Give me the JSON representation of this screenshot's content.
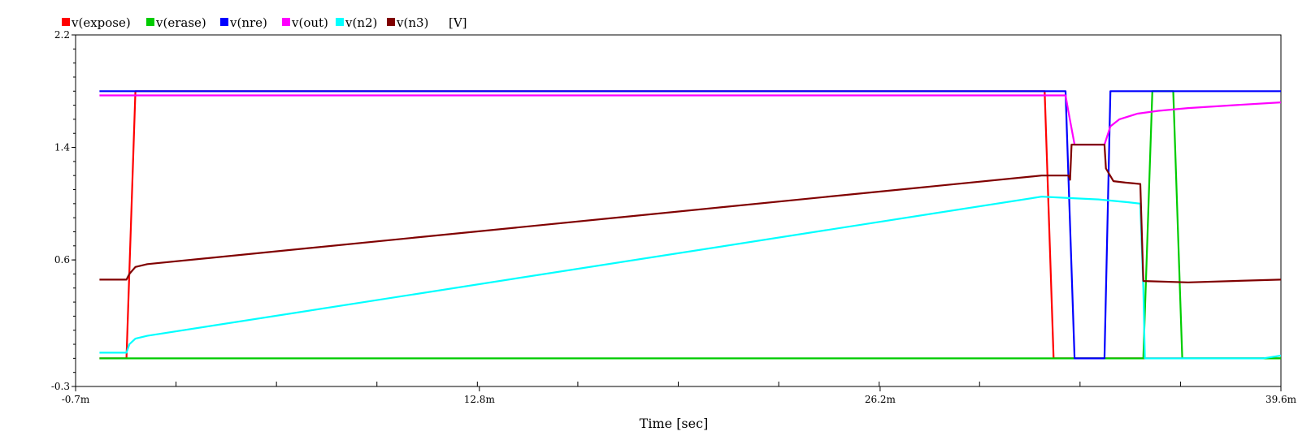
{
  "chart_data": {
    "type": "line",
    "xlabel": "Time [sec]",
    "yunit": "[V]",
    "xlim": [
      -0.7,
      39.6
    ],
    "ylim": [
      -0.3,
      2.2
    ],
    "x_ticks": [
      {
        "value": -0.7,
        "label": "-0.7m"
      },
      {
        "value": 12.8,
        "label": "12.8m"
      },
      {
        "value": 26.2,
        "label": "26.2m"
      },
      {
        "value": 39.6,
        "label": "39.6m"
      }
    ],
    "y_ticks": [
      {
        "value": 2.2,
        "label": "2.2"
      },
      {
        "value": 1.4,
        "label": "1.4"
      },
      {
        "value": 0.6,
        "label": "0.6"
      },
      {
        "value": -0.3,
        "label": "-0.3"
      }
    ],
    "legend_placement": "top-left",
    "series": [
      {
        "name": "v(expose)",
        "color": "#ff0000",
        "points": [
          [
            0.1,
            -0.1
          ],
          [
            1.0,
            -0.1
          ],
          [
            1.3,
            1.8
          ],
          [
            31.7,
            1.8
          ],
          [
            32.0,
            -0.1
          ],
          [
            39.6,
            -0.1
          ]
        ]
      },
      {
        "name": "v(erase)",
        "color": "#00cc00",
        "points": [
          [
            0.1,
            -0.1
          ],
          [
            35.0,
            -0.1
          ],
          [
            35.3,
            1.8
          ],
          [
            36.0,
            1.8
          ],
          [
            36.3,
            -0.1
          ],
          [
            39.6,
            -0.1
          ]
        ]
      },
      {
        "name": "v(nre)",
        "color": "#0000ff",
        "points": [
          [
            0.1,
            1.8
          ],
          [
            32.4,
            1.8
          ],
          [
            32.7,
            -0.1
          ],
          [
            33.7,
            -0.1
          ],
          [
            33.9,
            1.8
          ],
          [
            39.6,
            1.8
          ]
        ]
      },
      {
        "name": "v(out)",
        "color": "#ff00ff",
        "points": [
          [
            0.1,
            1.77
          ],
          [
            32.4,
            1.77
          ],
          [
            32.5,
            1.65
          ],
          [
            32.7,
            1.42
          ],
          [
            33.7,
            1.42
          ],
          [
            33.9,
            1.55
          ],
          [
            34.2,
            1.6
          ],
          [
            34.8,
            1.64
          ],
          [
            35.5,
            1.66
          ],
          [
            36.5,
            1.68
          ],
          [
            38.0,
            1.7
          ],
          [
            39.6,
            1.72
          ]
        ]
      },
      {
        "name": "v(n2)",
        "color": "#00ffff",
        "points": [
          [
            0.1,
            -0.06
          ],
          [
            1.0,
            -0.06
          ],
          [
            1.1,
            0.0
          ],
          [
            1.3,
            0.04
          ],
          [
            1.7,
            0.06
          ],
          [
            31.6,
            1.05
          ],
          [
            32.5,
            1.04
          ],
          [
            33.5,
            1.03
          ],
          [
            34.5,
            1.01
          ],
          [
            34.9,
            1.0
          ],
          [
            35.0,
            0.4
          ],
          [
            35.05,
            -0.1
          ],
          [
            39.0,
            -0.1
          ],
          [
            39.6,
            -0.08
          ]
        ]
      },
      {
        "name": "v(n3)",
        "color": "#800000",
        "points": [
          [
            0.1,
            0.46
          ],
          [
            1.0,
            0.46
          ],
          [
            1.1,
            0.5
          ],
          [
            1.3,
            0.55
          ],
          [
            1.7,
            0.57
          ],
          [
            31.6,
            1.2
          ],
          [
            32.5,
            1.2
          ],
          [
            32.55,
            1.17
          ],
          [
            32.6,
            1.42
          ],
          [
            33.7,
            1.42
          ],
          [
            33.75,
            1.25
          ],
          [
            34.0,
            1.16
          ],
          [
            34.4,
            1.15
          ],
          [
            34.9,
            1.14
          ],
          [
            35.0,
            0.45
          ],
          [
            36.5,
            0.44
          ],
          [
            38.0,
            0.45
          ],
          [
            39.6,
            0.46
          ]
        ]
      }
    ]
  }
}
